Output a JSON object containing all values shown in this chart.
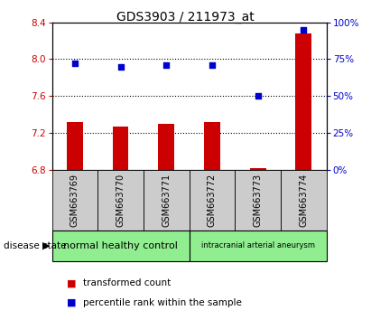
{
  "title": "GDS3903 / 211973_at",
  "samples": [
    "GSM663769",
    "GSM663770",
    "GSM663771",
    "GSM663772",
    "GSM663773",
    "GSM663774"
  ],
  "transformed_count": [
    7.32,
    7.27,
    7.3,
    7.32,
    6.82,
    8.28
  ],
  "percentile_rank": [
    72,
    70,
    71,
    71,
    50,
    95
  ],
  "ylim_left": [
    6.8,
    8.4
  ],
  "ylim_right": [
    0,
    100
  ],
  "yticks_left": [
    6.8,
    7.2,
    7.6,
    8.0,
    8.4
  ],
  "yticks_right": [
    0,
    25,
    50,
    75,
    100
  ],
  "bar_color": "#cc0000",
  "dot_color": "#0000cc",
  "bar_base": 6.8,
  "group1_label": "normal healthy control",
  "group2_label": "intracranial arterial aneurysm",
  "group_color": "#90EE90",
  "sample_box_color": "#cccccc",
  "disease_state_label": "disease state",
  "legend_bar_label": "transformed count",
  "legend_dot_label": "percentile rank within the sample",
  "background_color": "#ffffff",
  "plot_bg": "#ffffff",
  "tick_label_color_left": "#cc0000",
  "tick_label_color_right": "#0000cc",
  "dotted_lines": [
    7.2,
    7.6,
    8.0
  ]
}
